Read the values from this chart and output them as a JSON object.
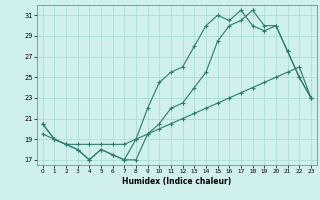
{
  "xlabel": "Humidex (Indice chaleur)",
  "background_color": "#cff0ec",
  "grid_color": "#aaddd8",
  "line_color": "#2d7a6e",
  "xlim": [
    -0.5,
    23.5
  ],
  "ylim": [
    16.5,
    32.0
  ],
  "xticks": [
    0,
    1,
    2,
    3,
    4,
    5,
    6,
    7,
    8,
    9,
    10,
    11,
    12,
    13,
    14,
    15,
    16,
    17,
    18,
    19,
    20,
    21,
    22,
    23
  ],
  "yticks": [
    17,
    19,
    21,
    23,
    25,
    27,
    29,
    31
  ],
  "line1_x": [
    0,
    1,
    2,
    3,
    4,
    5,
    6,
    7,
    8,
    9,
    10,
    11,
    12,
    13,
    14,
    15,
    16,
    17,
    18,
    19,
    20,
    21,
    22,
    23
  ],
  "line1_y": [
    20.5,
    19.0,
    18.5,
    18.0,
    17.0,
    18.0,
    17.5,
    17.0,
    17.0,
    19.5,
    20.5,
    22.0,
    22.5,
    24.0,
    25.5,
    28.5,
    30.0,
    30.5,
    31.5,
    30.0,
    30.0,
    27.5,
    25.0,
    23.0
  ],
  "line2_x": [
    0,
    1,
    2,
    3,
    4,
    5,
    6,
    7,
    8,
    9,
    10,
    11,
    12,
    13,
    14,
    15,
    16,
    17,
    18,
    19,
    20,
    21,
    22,
    23
  ],
  "line2_y": [
    20.5,
    19.0,
    18.5,
    18.0,
    17.0,
    18.0,
    17.5,
    17.0,
    19.0,
    22.0,
    24.5,
    25.5,
    26.0,
    28.0,
    30.0,
    31.0,
    30.5,
    31.5,
    30.0,
    29.5,
    30.0,
    27.5,
    25.0,
    23.0
  ],
  "line3_x": [
    0,
    1,
    2,
    3,
    4,
    5,
    6,
    7,
    8,
    9,
    10,
    11,
    12,
    13,
    14,
    15,
    16,
    17,
    18,
    19,
    20,
    21,
    22,
    23
  ],
  "line3_y": [
    19.5,
    19.0,
    18.5,
    18.5,
    18.5,
    18.5,
    18.5,
    18.5,
    19.0,
    19.5,
    20.0,
    20.5,
    21.0,
    21.5,
    22.0,
    22.5,
    23.0,
    23.5,
    24.0,
    24.5,
    25.0,
    25.5,
    26.0,
    23.0
  ],
  "figsize": [
    3.2,
    2.0
  ],
  "dpi": 100
}
